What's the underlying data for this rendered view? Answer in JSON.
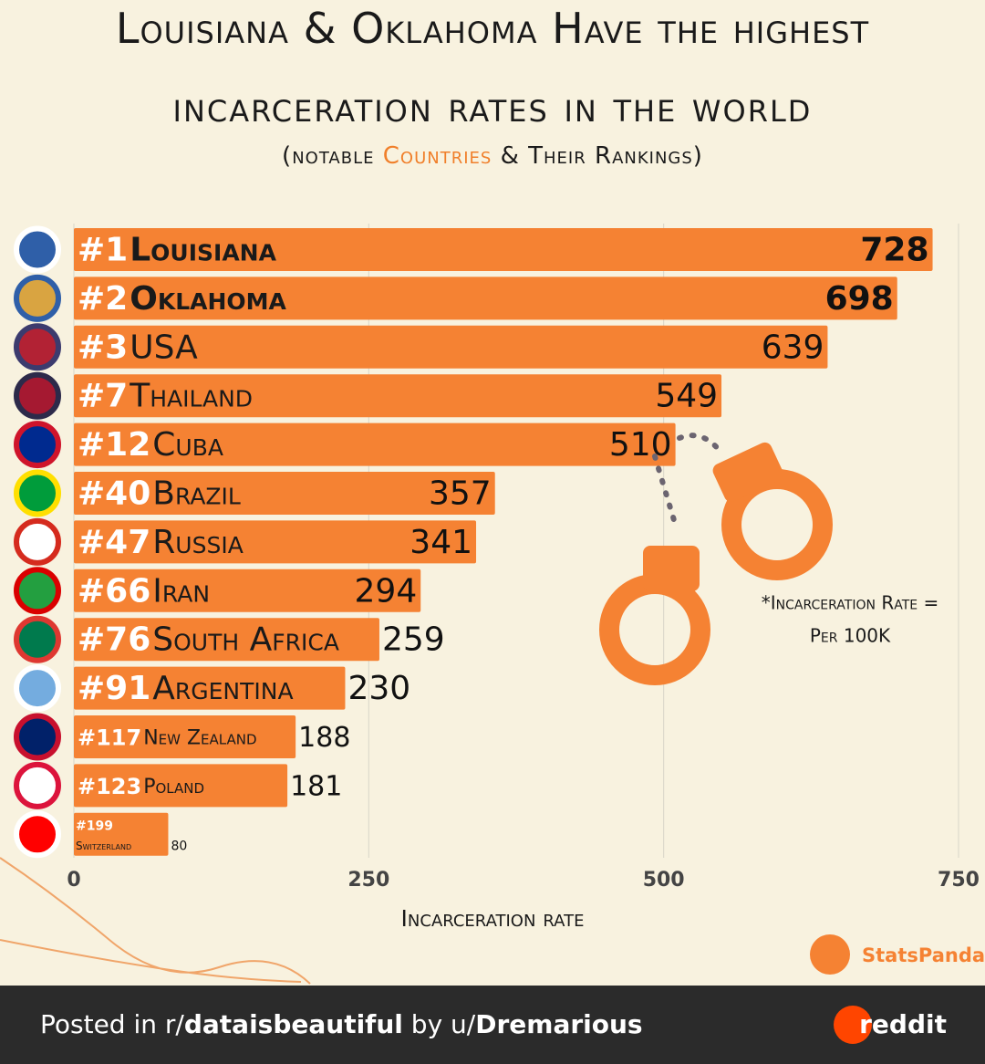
{
  "chart_data": {
    "type": "bar",
    "title": [
      "Louisiana & Oklahoma Have the highest",
      "incarceration rates in the world"
    ],
    "subtitle": [
      "(notable ",
      "Countries",
      " & Their Rankings)"
    ],
    "ranks": [
      "#1",
      "#2",
      "#3",
      "#7",
      "#12",
      "#40",
      "#47",
      "#66",
      "#76",
      "#91",
      "#117",
      "#123",
      "#199"
    ],
    "categories": [
      "Louisiana",
      "Oklahoma",
      "USA",
      "Thailand",
      "Cuba",
      "Brazil",
      "Russia",
      "Iran",
      "South Africa",
      "Argentina",
      "New Zealand",
      "Poland",
      "Switzerland"
    ],
    "values": [
      728,
      698,
      639,
      549,
      510,
      357,
      341,
      294,
      259,
      230,
      188,
      181,
      80
    ],
    "color": "#f58233",
    "xlim": [
      0,
      750
    ],
    "xticks": [
      0,
      250,
      500,
      750
    ],
    "grid": true,
    "xlabel": "Incarceration rate",
    "annotation": [
      "*Incarceration Rate =",
      "Per 100K"
    ],
    "watermark": "StatsPanda"
  },
  "footer": {
    "text": [
      "Posted in r/",
      "dataisbeautiful",
      " by u/",
      "Dremarious"
    ],
    "brand": "reddit"
  }
}
